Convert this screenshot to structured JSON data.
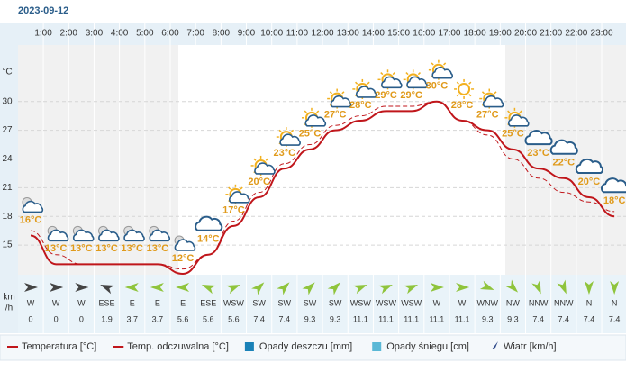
{
  "chart_data": {
    "type": "line",
    "title": "2023-09-12",
    "ylabel": "°C",
    "categories": [
      null,
      "1:00",
      "2:00",
      "3:00",
      "4:00",
      "5:00",
      "6:00",
      "7:00",
      "8:00",
      "9:00",
      "10:00",
      "11:00",
      "12:00",
      "13:00",
      "14:00",
      "15:00",
      "16:00",
      "17:00",
      "18:00",
      "19:00",
      "20:00",
      "21:00",
      "22:00",
      "23:00"
    ],
    "ylim": [
      11.9,
      35.9
    ],
    "yticks": [
      15,
      18,
      21,
      24,
      27,
      30
    ],
    "grid": true,
    "series": [
      {
        "name": "Temperatura [°C]",
        "color": "#c0161b",
        "values": [
          16,
          13,
          13,
          13,
          13,
          13,
          12,
          14,
          17,
          20,
          23,
          25,
          27,
          28,
          29,
          29,
          30,
          28,
          27,
          25,
          23,
          22,
          20,
          18
        ],
        "value_labels": [
          "16°C",
          "13°C",
          "13°C",
          "13°C",
          "13°C",
          "13°C",
          "12°C",
          "14°C",
          "17°C",
          "20°C",
          "23°C",
          "25°C",
          "27°C",
          "28°C",
          "29°C",
          "29°C",
          "30°C",
          "28°C",
          "27°C",
          "25°C",
          "23°C",
          "22°C",
          "20°C",
          "18°C"
        ]
      },
      {
        "name": "Temp. odczuwalna [°C]",
        "color": "#c0161b",
        "dashed": true,
        "values": [
          16.5,
          14,
          13,
          13,
          13,
          13,
          12.5,
          14,
          17.5,
          20.5,
          23.5,
          25.5,
          27.5,
          28.5,
          29.5,
          29.5,
          30,
          28,
          26.5,
          24,
          22,
          20.5,
          19.5,
          18.5
        ]
      }
    ],
    "legend_extra": [
      {
        "name": "Opady deszczu [mm]",
        "color": "#1a82b8"
      },
      {
        "name": "Opady śniegu [cm]",
        "color": "#5ab8d6"
      },
      {
        "name": "Wiatr [km/h]",
        "color": "#2f4a8a"
      }
    ],
    "wind_unit": [
      "km",
      "/h"
    ],
    "wind_directions": [
      "W",
      "W",
      "W",
      "ESE",
      "E",
      "E",
      "E",
      "ESE",
      "WSW",
      "SW",
      "SW",
      "SW",
      "SW",
      "WSW",
      "WSW",
      "WSW",
      "W",
      "W",
      "WNW",
      "NW",
      "NNW",
      "NNW",
      "N",
      "N"
    ],
    "wind_speeds": [
      0,
      0,
      0,
      1.9,
      3.7,
      3.7,
      5.6,
      5.6,
      5.6,
      7.4,
      7.4,
      9.3,
      9.3,
      11.1,
      11.1,
      11.1,
      11.1,
      11.1,
      9.3,
      9.3,
      7.4,
      7.4,
      7.4,
      7.4
    ]
  }
}
